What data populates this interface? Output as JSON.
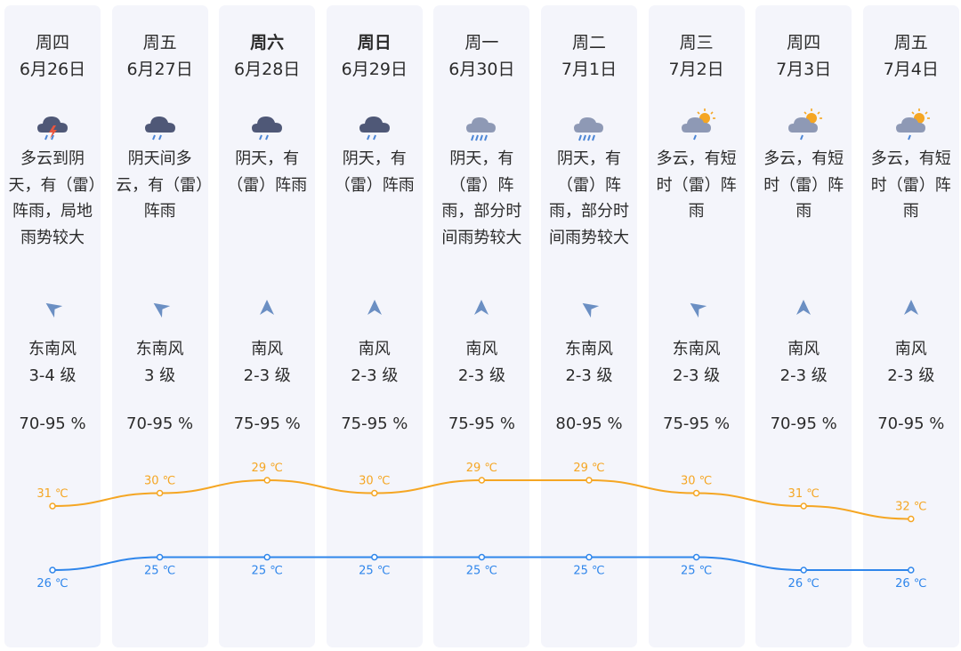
{
  "days": [
    {
      "weekday": "周四",
      "date": "6月26日",
      "bold": false,
      "icon": "thunder-rain-icon",
      "desc": "多云到阴天，有（雷）阵雨，局地雨势较大",
      "wind_dir": "东南风",
      "wind_level": "3-4 级",
      "wind_icon": "southeast-wind-arrow-icon",
      "humidity": "70-95 %"
    },
    {
      "weekday": "周五",
      "date": "6月27日",
      "bold": false,
      "icon": "rain-cloud-icon",
      "desc": "阴天间多云，有（雷）阵雨",
      "wind_dir": "东南风",
      "wind_level": "3 级",
      "wind_icon": "southeast-wind-arrow-icon",
      "humidity": "70-95 %"
    },
    {
      "weekday": "周六",
      "date": "6月28日",
      "bold": true,
      "icon": "rain-cloud-icon",
      "desc": "阴天，有（雷）阵雨",
      "wind_dir": "南风",
      "wind_level": "2-3 级",
      "wind_icon": "south-wind-arrow-icon",
      "humidity": "75-95 %"
    },
    {
      "weekday": "周日",
      "date": "6月29日",
      "bold": true,
      "icon": "rain-cloud-icon",
      "desc": "阴天，有（雷）阵雨",
      "wind_dir": "南风",
      "wind_level": "2-3 级",
      "wind_icon": "south-wind-arrow-icon",
      "humidity": "75-95 %"
    },
    {
      "weekday": "周一",
      "date": "6月30日",
      "bold": false,
      "icon": "heavy-rain-cloud-icon",
      "desc": "阴天，有（雷）阵雨，部分时间雨势较大",
      "wind_dir": "南风",
      "wind_level": "2-3 级",
      "wind_icon": "south-wind-arrow-icon",
      "humidity": "75-95 %"
    },
    {
      "weekday": "周二",
      "date": "7月1日",
      "bold": false,
      "icon": "heavy-rain-cloud-icon",
      "desc": "阴天，有（雷）阵雨，部分时间雨势较大",
      "wind_dir": "东南风",
      "wind_level": "2-3 级",
      "wind_icon": "southeast-wind-arrow-icon",
      "humidity": "80-95 %"
    },
    {
      "weekday": "周三",
      "date": "7月2日",
      "bold": false,
      "icon": "sun-cloud-rain-icon",
      "desc": "多云，有短时（雷）阵雨",
      "wind_dir": "东南风",
      "wind_level": "2-3 级",
      "wind_icon": "southeast-wind-arrow-icon",
      "humidity": "75-95 %"
    },
    {
      "weekday": "周四",
      "date": "7月3日",
      "bold": false,
      "icon": "sun-cloud-rain-icon",
      "desc": "多云，有短时（雷）阵雨",
      "wind_dir": "南风",
      "wind_level": "2-3 级",
      "wind_icon": "south-wind-arrow-icon",
      "humidity": "70-95 %"
    },
    {
      "weekday": "周五",
      "date": "7月4日",
      "bold": false,
      "icon": "sun-cloud-rain-icon",
      "desc": "多云，有短时（雷）阵雨",
      "wind_dir": "南风",
      "wind_level": "2-3 级",
      "wind_icon": "south-wind-arrow-icon",
      "humidity": "70-95 %"
    }
  ],
  "temperature": {
    "high": [
      31,
      30,
      29,
      30,
      29,
      29,
      30,
      31,
      32
    ],
    "low": [
      26,
      25,
      25,
      25,
      25,
      25,
      25,
      26,
      26
    ],
    "high_labels": [
      "31 ℃",
      "30 ℃",
      "29 ℃",
      "30 ℃",
      "29 ℃",
      "29 ℃",
      "30 ℃",
      "31 ℃",
      "32 ℃"
    ],
    "low_labels": [
      "26 ℃",
      "25 ℃",
      "25 ℃",
      "25 ℃",
      "25 ℃",
      "25 ℃",
      "25 ℃",
      "26 ℃",
      "26 ℃"
    ],
    "high_color": "#f5a623",
    "low_color": "#2f86eb"
  },
  "colors": {
    "column_bg": "#f4f5fb",
    "arrow": "#6b8fc3",
    "cloud_dark": "#4f5877",
    "rain": "#4c86d6",
    "sun": "#f5a623",
    "bolt": "#e8563f"
  }
}
